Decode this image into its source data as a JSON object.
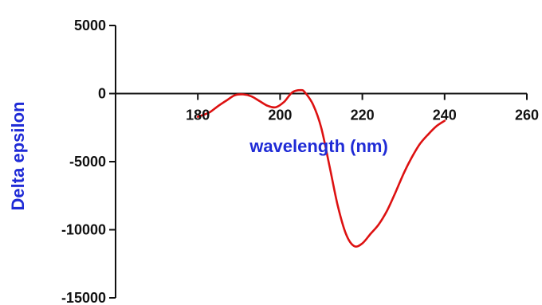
{
  "chart_data": {
    "type": "line",
    "title": "",
    "xlabel": "wavelength (nm)",
    "ylabel": "Delta epsilon",
    "xlim": [
      160,
      260
    ],
    "ylim": [
      -15000,
      5000
    ],
    "x_ticks": [
      180,
      200,
      220,
      240,
      260
    ],
    "x_tick_labels": [
      "180",
      "200",
      "220",
      "240",
      "260"
    ],
    "y_ticks": [
      5000,
      0,
      -5000,
      -10000,
      -15000
    ],
    "y_tick_labels": [
      "5000",
      "0",
      "-5000",
      "-10000",
      "-15000"
    ],
    "grid": false,
    "legend": "none",
    "colors": {
      "series": "#dd1111",
      "axis_title": "#1f2bd6",
      "axis": "#111111"
    },
    "series": [
      {
        "x": [
          180,
          181.5,
          183,
          185,
          187,
          189,
          191,
          193,
          195,
          197,
          199,
          201,
          203,
          205,
          206,
          208,
          210,
          212,
          214,
          216,
          218,
          220,
          222,
          224,
          226,
          228,
          230,
          232,
          234,
          236,
          238,
          240
        ],
        "y": [
          -1700,
          -1550,
          -1350,
          -900,
          -500,
          -120,
          -60,
          -200,
          -550,
          -900,
          -1000,
          -600,
          100,
          250,
          100,
          -800,
          -2500,
          -5300,
          -8200,
          -10300,
          -11200,
          -11000,
          -10300,
          -9600,
          -8600,
          -7300,
          -5900,
          -4700,
          -3700,
          -3000,
          -2400,
          -2000
        ]
      }
    ]
  }
}
